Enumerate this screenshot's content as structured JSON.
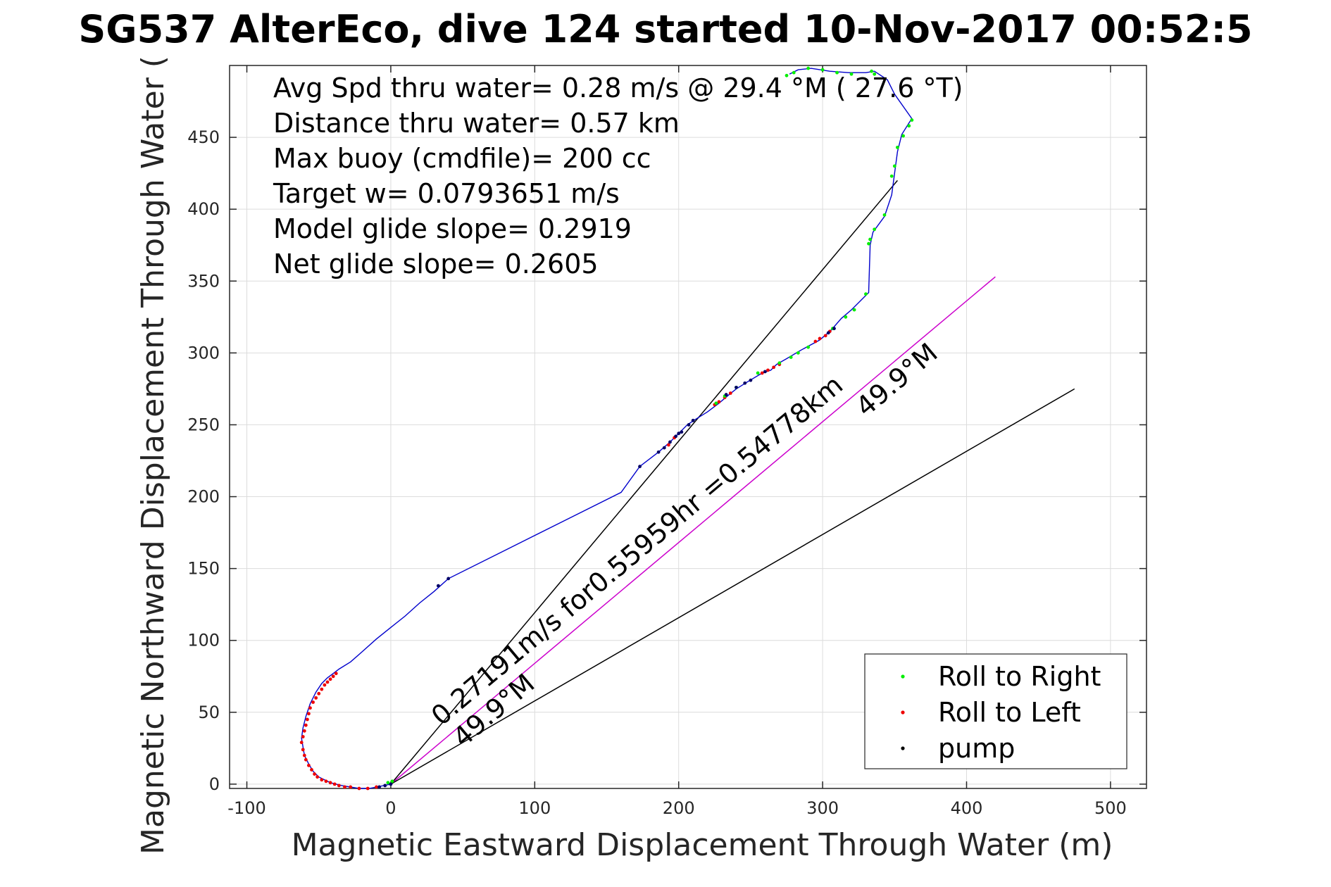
{
  "chart_data": {
    "type": "line",
    "title": "SG537 AlterEco, dive 124 started 10-Nov-2017 00:52:5",
    "xlabel": "Magnetic Eastward Displacement Through Water (m)",
    "ylabel": "Magnetic Northward Displacement Through Water (",
    "xlim": [
      -112,
      525
    ],
    "ylim": [
      -3,
      500
    ],
    "grid": true,
    "x_ticks": [
      -100,
      0,
      100,
      200,
      300,
      400,
      500
    ],
    "x_tick_labels": [
      "-100",
      "0",
      "100",
      "200",
      "300",
      "400",
      "500"
    ],
    "y_ticks": [
      0,
      50,
      100,
      150,
      200,
      250,
      300,
      350,
      400,
      450
    ],
    "y_tick_labels": [
      "0",
      "50",
      "100",
      "150",
      "200",
      "250",
      "300",
      "350",
      "400",
      "450"
    ],
    "stats": [
      "Avg Spd thru water=  0.28 m/s @  29.4 °M ( 27.6 °T)",
      "Distance thru water=  0.57 km",
      "Max buoy (cmdfile)= 200 cc",
      "Target w= 0.0793651 m/s",
      "Model glide slope= 0.2919",
      "Net glide slope= 0.2605"
    ],
    "legend": {
      "position": "bottom-right",
      "entries": [
        {
          "label": "Roll to Right",
          "color": "#00ee00"
        },
        {
          "label": "Roll to Left",
          "color": "#ee0000"
        },
        {
          "label": "pump",
          "color": "#000000"
        }
      ]
    },
    "track": {
      "color": "#0000cc",
      "points": [
        [
          0,
          0
        ],
        [
          -10,
          -2
        ],
        [
          -15,
          -3
        ],
        [
          -22,
          -3
        ],
        [
          -28,
          -2
        ],
        [
          -34,
          -1
        ],
        [
          -38,
          0
        ],
        [
          -42,
          1
        ],
        [
          -46,
          3
        ],
        [
          -50,
          5
        ],
        [
          -54,
          9
        ],
        [
          -57,
          14
        ],
        [
          -60,
          20
        ],
        [
          -61,
          26
        ],
        [
          -62,
          32
        ],
        [
          -61,
          39
        ],
        [
          -59,
          47
        ],
        [
          -56,
          56
        ],
        [
          -52,
          64
        ],
        [
          -48,
          70
        ],
        [
          -44,
          74
        ],
        [
          -40,
          77
        ],
        [
          -36,
          80
        ],
        [
          -28,
          85
        ],
        [
          -20,
          92
        ],
        [
          -10,
          101
        ],
        [
          0,
          109
        ],
        [
          10,
          117
        ],
        [
          20,
          126
        ],
        [
          30,
          134
        ],
        [
          40,
          143
        ],
        [
          80,
          163
        ],
        [
          120,
          183
        ],
        [
          160,
          203
        ],
        [
          173,
          221
        ],
        [
          186,
          231
        ],
        [
          194,
          238
        ],
        [
          200,
          244
        ],
        [
          206,
          250
        ],
        [
          212,
          254
        ],
        [
          220,
          259
        ],
        [
          228,
          265
        ],
        [
          235,
          271
        ],
        [
          240,
          275
        ],
        [
          248,
          280
        ],
        [
          258,
          286
        ],
        [
          264,
          288
        ],
        [
          268,
          292
        ],
        [
          275,
          296
        ],
        [
          285,
          302
        ],
        [
          298,
          309
        ],
        [
          306,
          316
        ],
        [
          313,
          324
        ],
        [
          320,
          330
        ],
        [
          332,
          342
        ],
        [
          333,
          375
        ],
        [
          335,
          384
        ],
        [
          343,
          395
        ],
        [
          348,
          410
        ],
        [
          350,
          425
        ],
        [
          352,
          440
        ],
        [
          355,
          452
        ],
        [
          360,
          460
        ],
        [
          362,
          463
        ],
        [
          350,
          480
        ],
        [
          345,
          490
        ],
        [
          336,
          496
        ],
        [
          330,
          495
        ],
        [
          318,
          495
        ],
        [
          305,
          496
        ],
        [
          292,
          498
        ],
        [
          283,
          497
        ],
        [
          277,
          494
        ]
      ]
    },
    "roll_right": [
      [
        275,
        493
      ],
      [
        280,
        495
      ],
      [
        290,
        498
      ],
      [
        300,
        497
      ],
      [
        310,
        495
      ],
      [
        320,
        494
      ],
      [
        334,
        496
      ],
      [
        336,
        494
      ],
      [
        362,
        462
      ],
      [
        360,
        458
      ],
      [
        356,
        451
      ],
      [
        352,
        443
      ],
      [
        350,
        430
      ],
      [
        348,
        423
      ],
      [
        343,
        396
      ],
      [
        336,
        386
      ],
      [
        333,
        379
      ],
      [
        332,
        376
      ],
      [
        330,
        341
      ],
      [
        322,
        330
      ],
      [
        316,
        325
      ],
      [
        307,
        317
      ],
      [
        290,
        304
      ],
      [
        283,
        300
      ],
      [
        278,
        297
      ],
      [
        270,
        293
      ],
      [
        255,
        286
      ],
      [
        240,
        276
      ],
      [
        232,
        270
      ],
      [
        226,
        265
      ],
      [
        -2,
        1
      ],
      [
        1,
        2
      ]
    ],
    "roll_left": [
      [
        -38,
        77
      ],
      [
        -40,
        75
      ],
      [
        -42,
        73
      ],
      [
        -44,
        71
      ],
      [
        -46,
        69
      ],
      [
        -48,
        66
      ],
      [
        -50,
        63
      ],
      [
        -52,
        60
      ],
      [
        -54,
        57
      ],
      [
        -56,
        53
      ],
      [
        -57,
        49
      ],
      [
        -58,
        45
      ],
      [
        -59,
        41
      ],
      [
        -60,
        37
      ],
      [
        -61,
        33
      ],
      [
        -62,
        29
      ],
      [
        -61,
        24
      ],
      [
        -60,
        20
      ],
      [
        -59,
        17
      ],
      [
        -57,
        13
      ],
      [
        -55,
        10
      ],
      [
        -53,
        7
      ],
      [
        -51,
        5
      ],
      [
        -48,
        3
      ],
      [
        -45,
        2
      ],
      [
        -42,
        1
      ],
      [
        -39,
        0
      ],
      [
        -36,
        -1
      ],
      [
        -32,
        -2
      ],
      [
        -28,
        -2
      ],
      [
        -22,
        -3
      ],
      [
        -16,
        -3
      ],
      [
        -10,
        -2
      ],
      [
        225,
        264
      ],
      [
        228,
        266
      ],
      [
        232,
        269
      ],
      [
        236,
        272
      ],
      [
        258,
        286
      ],
      [
        262,
        288
      ],
      [
        266,
        290
      ],
      [
        270,
        292
      ],
      [
        295,
        308
      ],
      [
        298,
        310
      ],
      [
        302,
        312
      ],
      [
        305,
        315
      ],
      [
        193,
        236
      ],
      [
        197,
        241
      ]
    ],
    "pump": [
      [
        0,
        0
      ],
      [
        -4,
        -1
      ],
      [
        -8,
        -2
      ],
      [
        33,
        138
      ],
      [
        40,
        143
      ],
      [
        173,
        221
      ],
      [
        186,
        231
      ],
      [
        190,
        234
      ],
      [
        194,
        238
      ],
      [
        198,
        242
      ],
      [
        200,
        244
      ],
      [
        202,
        245
      ],
      [
        207,
        250
      ],
      [
        210,
        253
      ],
      [
        233,
        271
      ],
      [
        240,
        276
      ],
      [
        246,
        279
      ],
      [
        250,
        281
      ],
      [
        260,
        287
      ],
      [
        304,
        314
      ],
      [
        308,
        317
      ]
    ],
    "lines": [
      {
        "role": "course-over-ground",
        "color": "#000000",
        "points": [
          [
            0,
            0
          ],
          [
            352,
            420
          ]
        ]
      },
      {
        "role": "net-track",
        "color": "#cc00cc",
        "points": [
          [
            0,
            0
          ],
          [
            420,
            353
          ]
        ]
      },
      {
        "role": "model-glide",
        "color": "#000000",
        "points": [
          [
            0,
            0
          ],
          [
            475,
            275
          ]
        ]
      }
    ],
    "annotations": [
      {
        "text": "0.27191m/s for0.55959hr =0.54778km",
        "x": 35,
        "y": 40,
        "angle_data": 40.05
      },
      {
        "text": "49.9°M",
        "x": 50,
        "y": 25,
        "angle_data": 40.05
      },
      {
        "text": "49.9°M",
        "x": 330,
        "y": 255,
        "angle_data": 40.05
      }
    ]
  }
}
